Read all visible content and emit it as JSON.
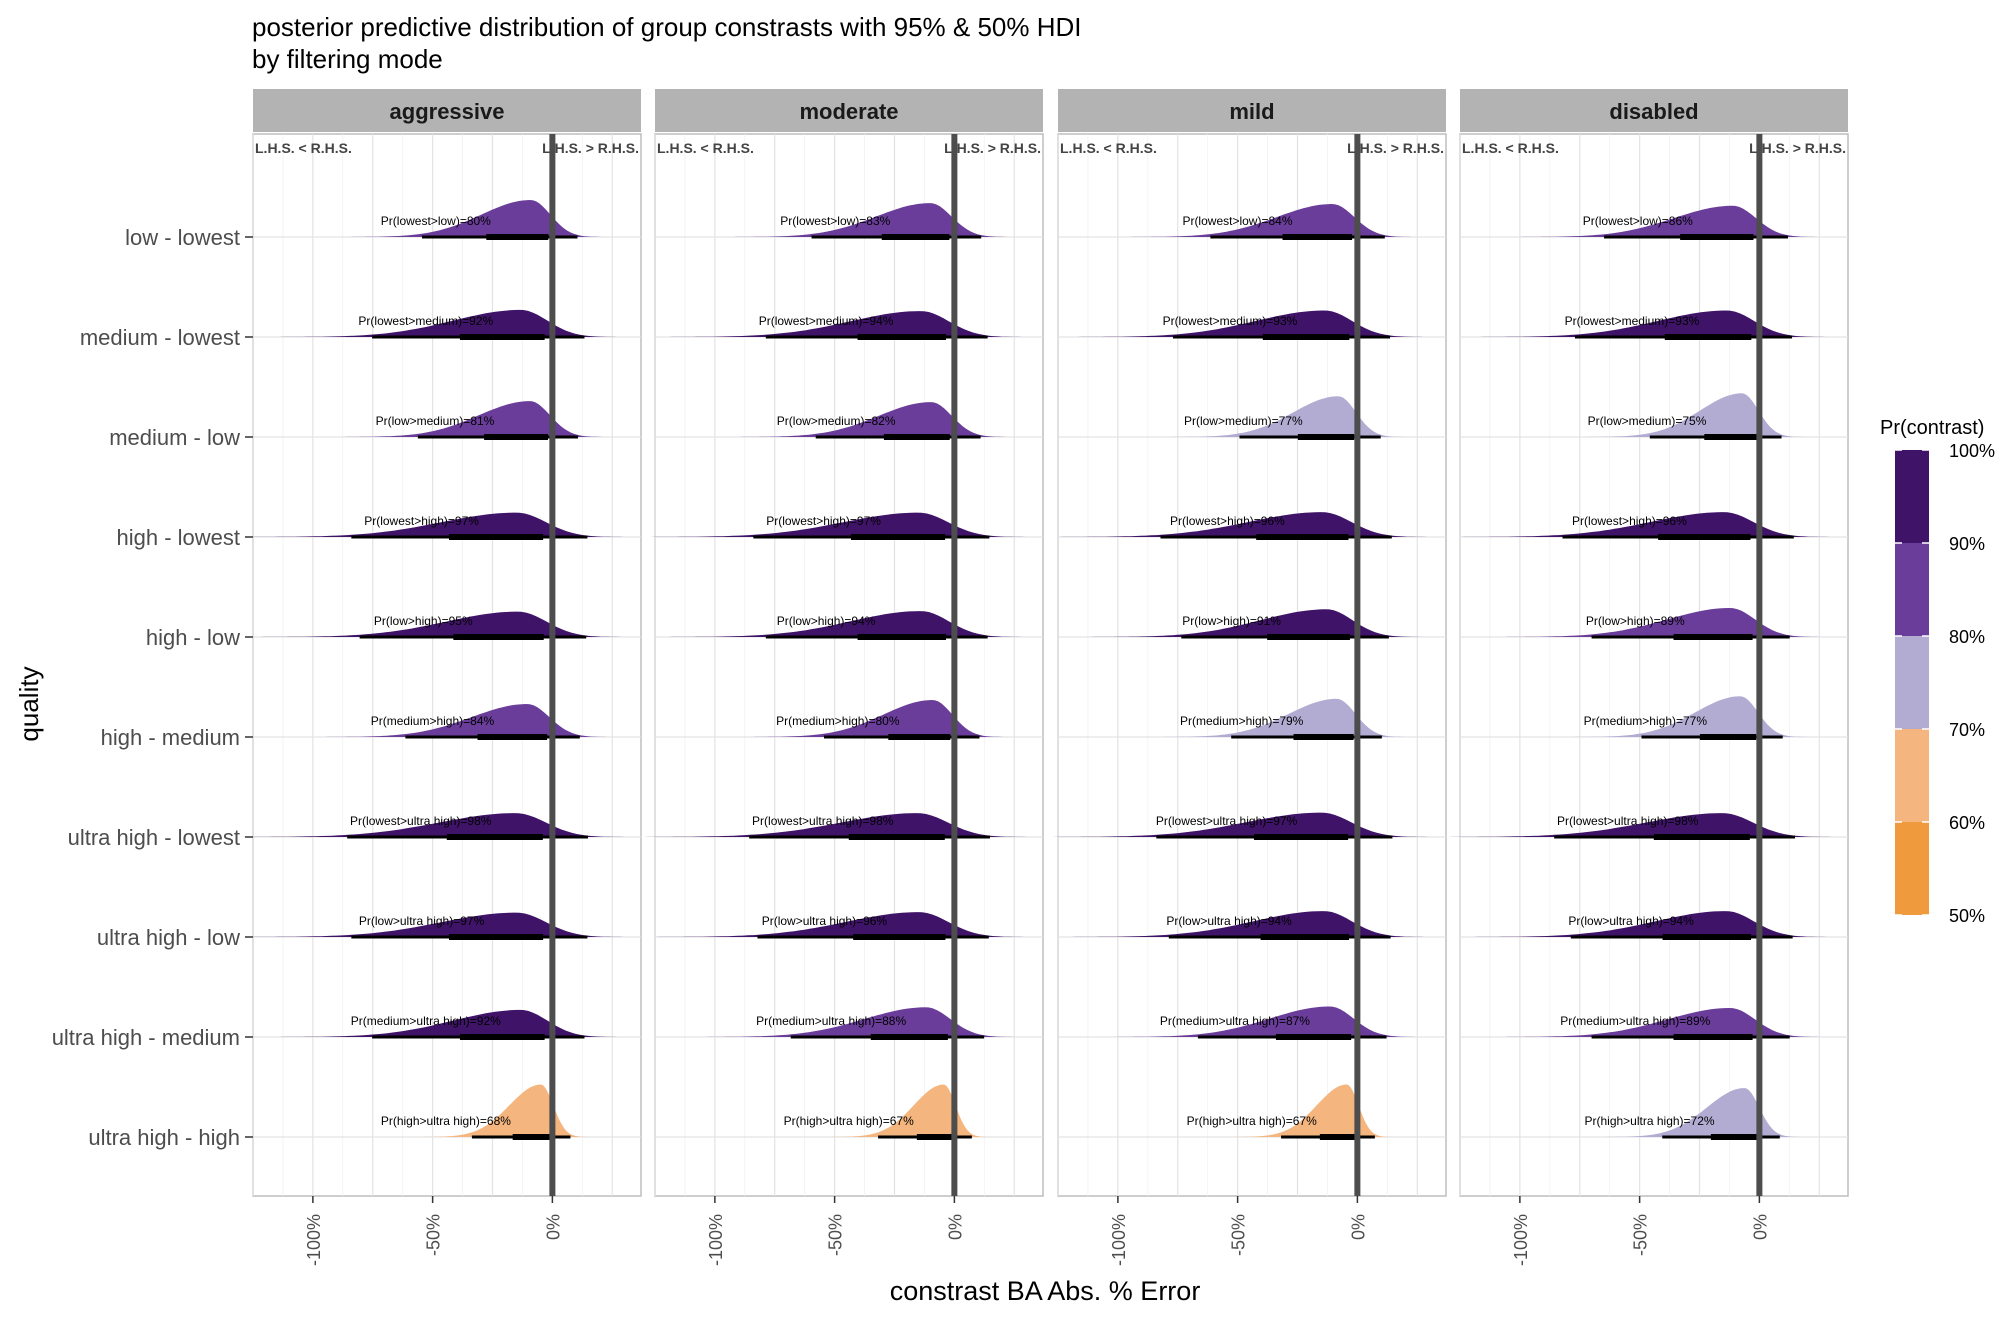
{
  "chart_data": {
    "type": "ridgeline",
    "title": "posterior predictive distribution of group constrasts with 95% & 50% HDI",
    "subtitle": "by filtering mode",
    "xlabel": "constrast BA Abs. % Error",
    "ylabel": "quality",
    "x_ticks": [
      "-100%",
      "-50%",
      "0%"
    ],
    "xlim": [
      -125,
      37
    ],
    "facets": [
      "aggressive",
      "moderate",
      "mild",
      "disabled"
    ],
    "facet_header_left": "L.H.S. < R.H.S.",
    "facet_header_right": "L.H.S. > R.H.S.",
    "rows": [
      "low - lowest",
      "medium - lowest",
      "medium - low",
      "high - lowest",
      "high - low",
      "high - medium",
      "ultra high - lowest",
      "ultra high - low",
      "ultra high - medium",
      "ultra high - high"
    ],
    "row_prob_labels": [
      "lowest>low",
      "lowest>medium",
      "low>medium",
      "lowest>high",
      "low>high",
      "medium>high",
      "lowest>ultra high",
      "low>ultra high",
      "medium>ultra high",
      "high>ultra high"
    ],
    "probabilities": {
      "aggressive": [
        80,
        92,
        81,
        97,
        95,
        84,
        98,
        97,
        92,
        68
      ],
      "moderate": [
        83,
        94,
        82,
        97,
        94,
        80,
        98,
        96,
        88,
        67
      ],
      "mild": [
        84,
        93,
        77,
        96,
        91,
        79,
        97,
        94,
        87,
        67
      ],
      "disabled": [
        86,
        93,
        75,
        96,
        89,
        77,
        98,
        94,
        89,
        72
      ]
    },
    "legend": {
      "title": "Pr(contrast)",
      "breaks": [
        "100%",
        "90%",
        "80%",
        "70%",
        "60%",
        "50%"
      ],
      "bins": [
        {
          "from": 90,
          "to": 100,
          "color": "#3f1468"
        },
        {
          "from": 80,
          "to": 90,
          "color": "#6a3d9a"
        },
        {
          "from": 70,
          "to": 80,
          "color": "#b2abd2"
        },
        {
          "from": 60,
          "to": 70,
          "color": "#f4b67e"
        },
        {
          "from": 50,
          "to": 60,
          "color": "#ef9a3c"
        }
      ]
    },
    "grid": true
  }
}
